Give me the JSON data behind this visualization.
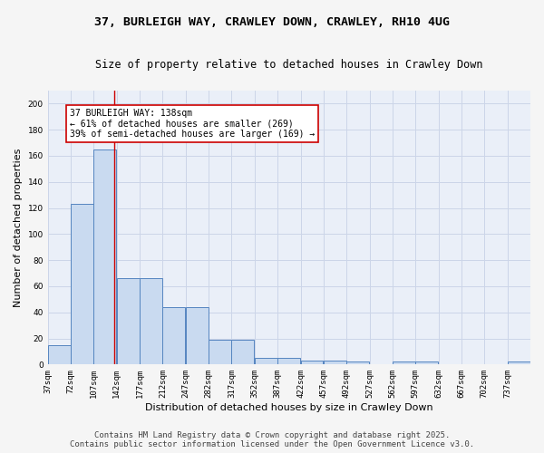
{
  "title_line1": "37, BURLEIGH WAY, CRAWLEY DOWN, CRAWLEY, RH10 4UG",
  "title_line2": "Size of property relative to detached houses in Crawley Down",
  "xlabel": "Distribution of detached houses by size in Crawley Down",
  "ylabel": "Number of detached properties",
  "bar_heights": [
    15,
    123,
    165,
    66,
    66,
    44,
    44,
    19,
    19,
    5,
    5,
    3,
    3,
    2,
    0,
    2,
    2,
    0,
    0,
    0,
    2
  ],
  "bin_edges": [
    37,
    72,
    107,
    142,
    177,
    212,
    247,
    282,
    317,
    352,
    387,
    422,
    457,
    492,
    527,
    562,
    597,
    632,
    667,
    702,
    737,
    772
  ],
  "tick_labels": [
    "37sqm",
    "72sqm",
    "107sqm",
    "142sqm",
    "177sqm",
    "212sqm",
    "247sqm",
    "282sqm",
    "317sqm",
    "352sqm",
    "387sqm",
    "422sqm",
    "457sqm",
    "492sqm",
    "527sqm",
    "562sqm",
    "597sqm",
    "632sqm",
    "667sqm",
    "702sqm",
    "737sqm"
  ],
  "bar_color": "#c9daf0",
  "bar_edge_color": "#5585c0",
  "red_line_x": 138,
  "annotation_box_text": "37 BURLEIGH WAY: 138sqm\n← 61% of detached houses are smaller (269)\n39% of semi-detached houses are larger (169) →",
  "annotation_box_color": "#ffffff",
  "annotation_box_edge": "#cc0000",
  "annotation_text_color": "#000000",
  "ylim": [
    0,
    210
  ],
  "yticks": [
    0,
    20,
    40,
    60,
    80,
    100,
    120,
    140,
    160,
    180,
    200
  ],
  "grid_color": "#ccd5e8",
  "background_color": "#eaeff8",
  "fig_facecolor": "#f5f5f5",
  "footer_line1": "Contains HM Land Registry data © Crown copyright and database right 2025.",
  "footer_line2": "Contains public sector information licensed under the Open Government Licence v3.0.",
  "title_fontsize": 9.5,
  "subtitle_fontsize": 8.5,
  "axis_label_fontsize": 8,
  "tick_fontsize": 6.5,
  "annotation_fontsize": 7,
  "footer_fontsize": 6.5
}
